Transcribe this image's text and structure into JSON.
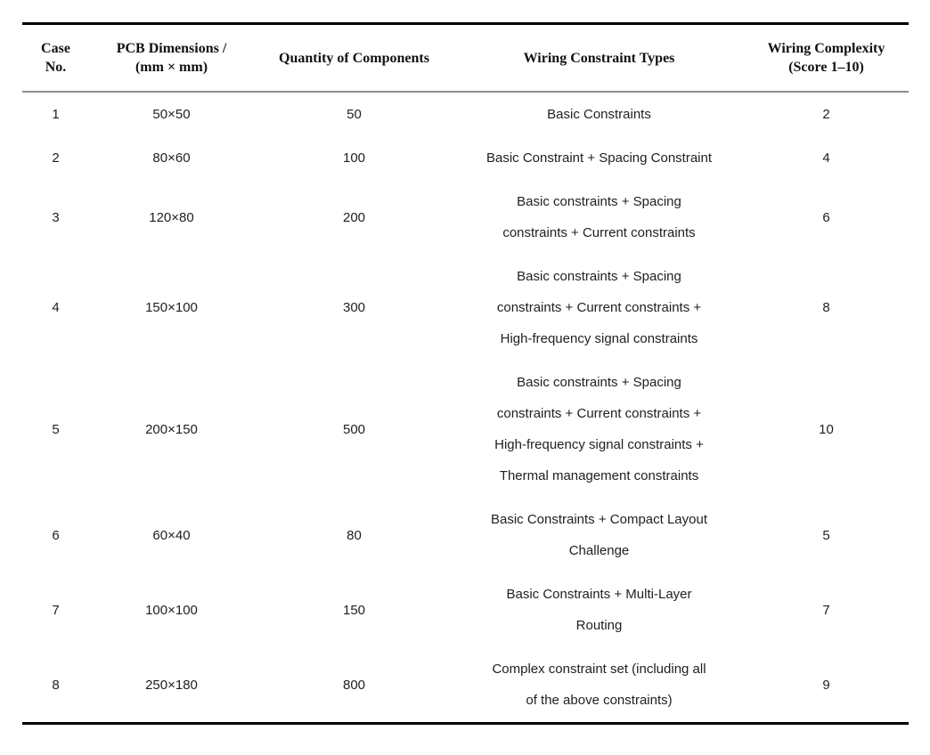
{
  "table": {
    "columns": [
      {
        "label": "Case\nNo."
      },
      {
        "label": "PCB Dimensions /\n(mm × mm)"
      },
      {
        "label": "Quantity of Components"
      },
      {
        "label": "Wiring Constraint Types"
      },
      {
        "label": "Wiring Complexity\n(Score 1–10)"
      }
    ],
    "rows": [
      {
        "case_no": "1",
        "pcb_dimensions": "50×50",
        "quantity_of_components": "50",
        "wiring_constraint_types": "Basic Constraints",
        "wiring_complexity_score": "2"
      },
      {
        "case_no": "2",
        "pcb_dimensions": "80×60",
        "quantity_of_components": "100",
        "wiring_constraint_types": "Basic Constraint + Spacing Constraint",
        "wiring_complexity_score": "4"
      },
      {
        "case_no": "3",
        "pcb_dimensions": "120×80",
        "quantity_of_components": "200",
        "wiring_constraint_types": "Basic constraints + Spacing\nconstraints + Current constraints",
        "wiring_complexity_score": "6"
      },
      {
        "case_no": "4",
        "pcb_dimensions": "150×100",
        "quantity_of_components": "300",
        "wiring_constraint_types": "Basic constraints + Spacing\nconstraints + Current constraints +\nHigh-frequency signal constraints",
        "wiring_complexity_score": "8"
      },
      {
        "case_no": "5",
        "pcb_dimensions": "200×150",
        "quantity_of_components": "500",
        "wiring_constraint_types": "Basic constraints + Spacing\nconstraints + Current constraints +\nHigh-frequency signal constraints +\nThermal management constraints",
        "wiring_complexity_score": "10"
      },
      {
        "case_no": "6",
        "pcb_dimensions": "60×40",
        "quantity_of_components": "80",
        "wiring_constraint_types": "Basic Constraints + Compact Layout\nChallenge",
        "wiring_complexity_score": "5"
      },
      {
        "case_no": "7",
        "pcb_dimensions": "100×100",
        "quantity_of_components": "150",
        "wiring_constraint_types": "Basic Constraints + Multi-Layer\nRouting",
        "wiring_complexity_score": "7"
      },
      {
        "case_no": "8",
        "pcb_dimensions": "250×180",
        "quantity_of_components": "800",
        "wiring_constraint_types": "Complex constraint set (including all\nof the above constraints)",
        "wiring_complexity_score": "9"
      }
    ]
  },
  "style": {
    "rule_color_heavy": "#000000",
    "rule_color_light": "#8c8c8c",
    "text_color": "#212121"
  }
}
